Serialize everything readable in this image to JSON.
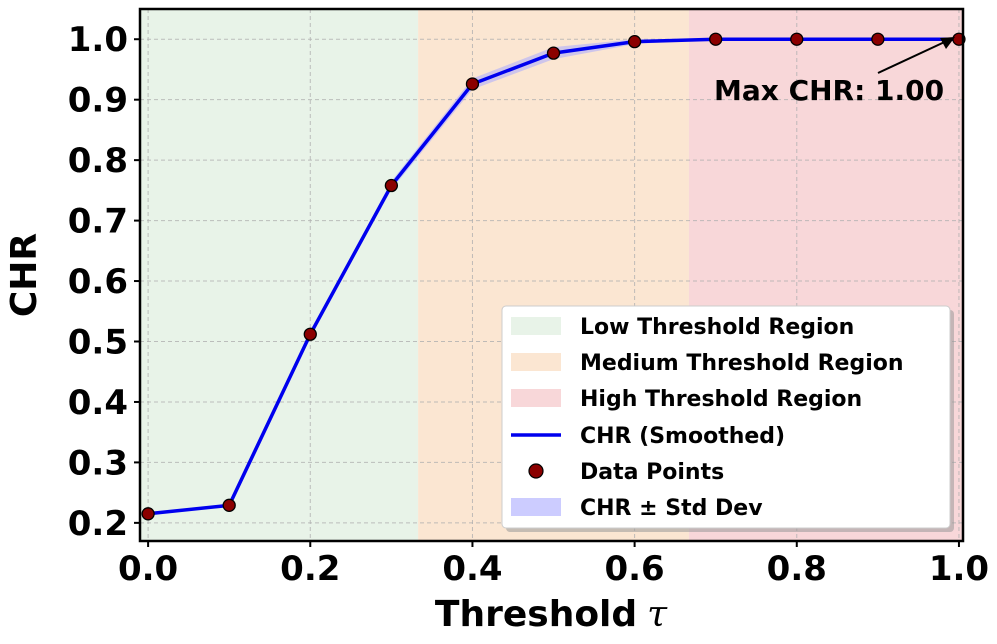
{
  "chart_data": {
    "type": "line",
    "xlabel": "Threshold",
    "xlabel_symbol": "τ",
    "ylabel": "CHR",
    "xlim": [
      -0.01,
      1.005
    ],
    "ylim": [
      0.17,
      1.05
    ],
    "xticks": [
      0.0,
      0.2,
      0.4,
      0.6,
      0.8,
      1.0
    ],
    "xtick_labels": [
      "0.0",
      "0.2",
      "0.4",
      "0.6",
      "0.8",
      "1.0"
    ],
    "yticks": [
      0.2,
      0.3,
      0.4,
      0.5,
      0.6,
      0.7,
      0.8,
      0.9,
      1.0
    ],
    "ytick_labels": [
      "0.2",
      "0.3",
      "0.4",
      "0.5",
      "0.6",
      "0.7",
      "0.8",
      "0.9",
      "1.0"
    ],
    "grid": true,
    "legend_position": "lower-right",
    "regions": [
      {
        "name": "Low Threshold Region",
        "x_range": [
          0.0,
          0.333
        ],
        "color": "#e8f3e8"
      },
      {
        "name": "Medium Threshold Region",
        "x_range": [
          0.333,
          0.667
        ],
        "color": "#fbe6d2"
      },
      {
        "name": "High Threshold Region",
        "x_range": [
          0.667,
          1.0
        ],
        "color": "#f8d7d9"
      }
    ],
    "series": [
      {
        "name": "CHR (Smoothed)",
        "kind": "line",
        "color": "#0000ee",
        "x": [
          0.0,
          0.1,
          0.2,
          0.3,
          0.4,
          0.5,
          0.6,
          0.7,
          0.8,
          0.9,
          1.0
        ],
        "values": [
          0.215,
          0.229,
          0.512,
          0.758,
          0.926,
          0.977,
          0.996,
          1.0,
          1.0,
          1.0,
          1.0
        ]
      },
      {
        "name": "Data Points",
        "kind": "scatter",
        "color": "#8b0000",
        "x": [
          0.0,
          0.1,
          0.2,
          0.3,
          0.4,
          0.5,
          0.6,
          0.7,
          0.8,
          0.9,
          1.0
        ],
        "values": [
          0.215,
          0.229,
          0.512,
          0.758,
          0.926,
          0.977,
          0.996,
          1.0,
          1.0,
          1.0,
          1.0
        ]
      },
      {
        "name": "CHR ± Std Dev",
        "kind": "band",
        "color": "#aaaaff",
        "x": [
          0.0,
          0.1,
          0.2,
          0.3,
          0.4,
          0.5,
          0.6,
          0.7,
          0.8,
          0.9,
          1.0
        ],
        "upper": [
          0.215,
          0.229,
          0.515,
          0.765,
          0.935,
          0.987,
          1.0,
          1.0,
          1.0,
          1.0,
          1.0
        ],
        "lower": [
          0.215,
          0.229,
          0.509,
          0.751,
          0.917,
          0.967,
          0.992,
          1.0,
          1.0,
          1.0,
          1.0
        ]
      }
    ],
    "annotation": {
      "text": "Max CHR: 1.00",
      "x": 1.0,
      "y": 1.0
    }
  }
}
